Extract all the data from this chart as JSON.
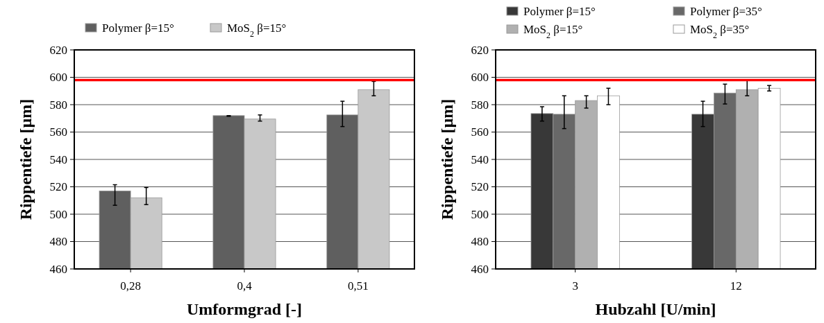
{
  "chart_data": [
    {
      "type": "bar",
      "xlabel": "Umformgrad [-]",
      "ylabel": "Rippentiefe [µm]",
      "categories": [
        "0,28",
        "0,4",
        "0,51"
      ],
      "series": [
        {
          "name": "Polymer β=15°",
          "color": "#5f5f5f",
          "values": [
            517,
            572,
            572.5
          ],
          "errors": [
            [
              506.5,
              521.5
            ],
            [
              571.5,
              572
            ],
            [
              564,
              582.5
            ]
          ]
        },
        {
          "name": "MoS$_{2}$ β=15°",
          "color": "#c8c8c8",
          "values": [
            512,
            569.5,
            591
          ],
          "errors": [
            [
              507,
              519.5
            ],
            [
              568,
              572.5
            ],
            [
              586.5,
              597
            ]
          ]
        }
      ],
      "ylim": [
        460,
        620
      ],
      "yticks": [
        460,
        480,
        500,
        520,
        540,
        560,
        580,
        600,
        620
      ],
      "grid": "y",
      "legend": "top",
      "ref_lines": [
        {
          "axis": "y",
          "value": 598,
          "color": "#ff0000"
        }
      ]
    },
    {
      "type": "bar",
      "xlabel": "Hubzahl [U/min]",
      "ylabel": "Rippentiefe [µm]",
      "categories": [
        "3",
        "12"
      ],
      "series": [
        {
          "name": "Polymer β=15°",
          "color": "#383838",
          "values": [
            573.5,
            573
          ],
          "errors": [
            [
              568,
              578.5
            ],
            [
              564,
              582.5
            ]
          ]
        },
        {
          "name": "Polymer β=35°",
          "color": "#686868",
          "values": [
            573,
            588.5
          ],
          "errors": [
            [
              562.5,
              586.5
            ],
            [
              580.5,
              595
            ]
          ]
        },
        {
          "name": "MoS$_{2}$ β=15°",
          "color": "#b0b0b0",
          "values": [
            583,
            591
          ],
          "errors": [
            [
              577.5,
              586.5
            ],
            [
              586.5,
              598
            ]
          ]
        },
        {
          "name": "MoS$_{2}$ β=35°",
          "color": "#ffffff",
          "values": [
            586.5,
            592
          ],
          "errors": [
            [
              580,
              592
            ],
            [
              590,
              594
            ]
          ]
        }
      ],
      "ylim": [
        460,
        620
      ],
      "yticks": [
        460,
        480,
        500,
        520,
        540,
        560,
        580,
        600,
        620
      ],
      "grid": "y",
      "legend": "top",
      "ref_lines": [
        {
          "axis": "y",
          "value": 598,
          "color": "#ff0000"
        }
      ]
    }
  ]
}
